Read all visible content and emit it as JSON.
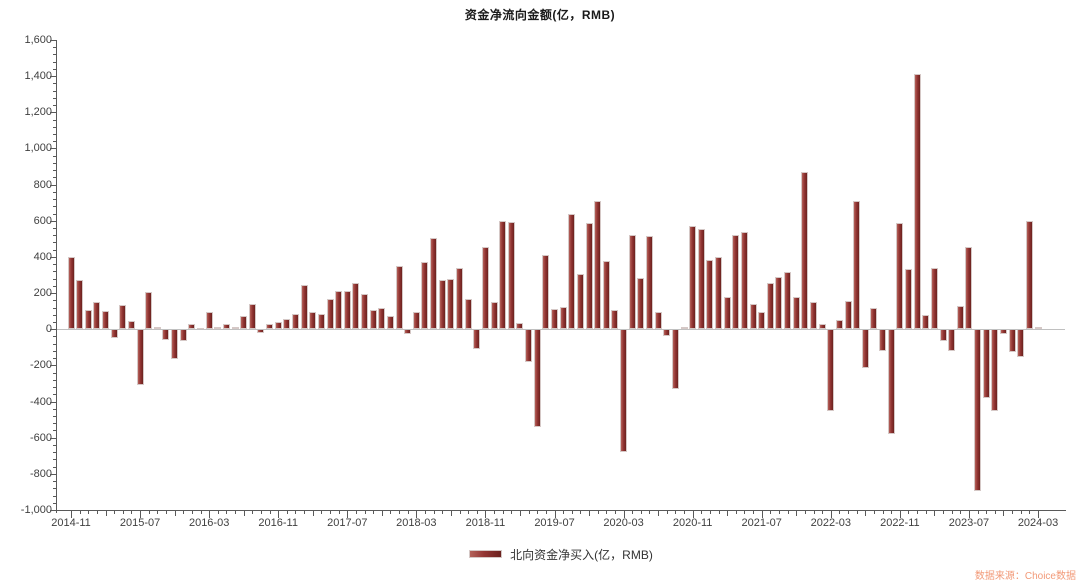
{
  "title": "资金净流向金额(亿，RMB)",
  "legend": {
    "label": "北向资金净买入(亿，RMB)"
  },
  "source_note": "数据来源：Choice数据",
  "colors": {
    "bar_main": "#943634",
    "bar_gradient_light": "#b4625a",
    "bar_gradient_dark": "#6b211e",
    "axis": "#595959",
    "zero_line": "#c0c0c0",
    "label_text": "#404040",
    "title_text": "#1a1a1a",
    "source_text": "#f29a78",
    "background": "#ffffff"
  },
  "chart_data": {
    "type": "bar",
    "title": "资金净流向金额(亿，RMB)",
    "xlabel": "",
    "ylabel": "",
    "ylim": [
      -1000,
      1600
    ],
    "y_tick_labels": [
      "1,600",
      "1,400",
      "1,200",
      "1,000",
      "800",
      "600",
      "400",
      "200",
      "0",
      "-200",
      "-400",
      "-600",
      "-800",
      "-1,000"
    ],
    "y_tick_values": [
      1600,
      1400,
      1200,
      1000,
      800,
      600,
      400,
      200,
      0,
      -200,
      -400,
      -600,
      -800,
      -1000
    ],
    "x_tick_labels": [
      "2014-11",
      "2015-07",
      "2016-03",
      "2016-11",
      "2017-07",
      "2018-03",
      "2018-11",
      "2019-07",
      "2020-03",
      "2020-11",
      "2021-07",
      "2022-03",
      "2022-11",
      "2023-07",
      "2024-03"
    ],
    "x_tick_every_months": 8,
    "grid": "none, zero baseline only",
    "legend_position": "bottom-center",
    "x": [
      "2014-11",
      "2014-12",
      "2015-01",
      "2015-02",
      "2015-03",
      "2015-04",
      "2015-05",
      "2015-06",
      "2015-07",
      "2015-08",
      "2015-09",
      "2015-10",
      "2015-11",
      "2015-12",
      "2016-01",
      "2016-02",
      "2016-03",
      "2016-04",
      "2016-05",
      "2016-06",
      "2016-07",
      "2016-08",
      "2016-09",
      "2016-10",
      "2016-11",
      "2016-12",
      "2017-01",
      "2017-02",
      "2017-03",
      "2017-04",
      "2017-05",
      "2017-06",
      "2017-07",
      "2017-08",
      "2017-09",
      "2017-10",
      "2017-11",
      "2017-12",
      "2018-01",
      "2018-02",
      "2018-03",
      "2018-04",
      "2018-05",
      "2018-06",
      "2018-07",
      "2018-08",
      "2018-09",
      "2018-10",
      "2018-11",
      "2018-12",
      "2019-01",
      "2019-02",
      "2019-03",
      "2019-04",
      "2019-05",
      "2019-06",
      "2019-07",
      "2019-08",
      "2019-09",
      "2019-10",
      "2019-11",
      "2019-12",
      "2020-01",
      "2020-02",
      "2020-03",
      "2020-04",
      "2020-05",
      "2020-06",
      "2020-07",
      "2020-08",
      "2020-09",
      "2020-10",
      "2020-11",
      "2020-12",
      "2021-01",
      "2021-02",
      "2021-03",
      "2021-04",
      "2021-05",
      "2021-06",
      "2021-07",
      "2021-08",
      "2021-09",
      "2021-10",
      "2021-11",
      "2021-12",
      "2022-01",
      "2022-02",
      "2022-03",
      "2022-04",
      "2022-05",
      "2022-06",
      "2022-07",
      "2022-08",
      "2022-09",
      "2022-10",
      "2022-11",
      "2022-12",
      "2023-01",
      "2023-02",
      "2023-03",
      "2023-04",
      "2023-05",
      "2023-06",
      "2023-07",
      "2023-08",
      "2023-09",
      "2023-10",
      "2023-11",
      "2023-12",
      "2024-01",
      "2024-02",
      "2024-03"
    ],
    "series": [
      {
        "name": "北向资金净买入(亿，RMB)",
        "values": [
          400,
          270,
          105,
          150,
          100,
          -48,
          135,
          48,
          -311,
          205,
          15,
          -57,
          -167,
          -63,
          29,
          7,
          98,
          15,
          29,
          15,
          75,
          140,
          -20,
          29,
          42,
          57,
          85,
          245,
          98,
          85,
          167,
          210,
          213,
          256,
          195,
          107,
          116,
          75,
          350,
          -26,
          97,
          370,
          505,
          275,
          280,
          340,
          165,
          -109,
          456,
          150,
          600,
          595,
          35,
          -180,
          -540,
          410,
          110,
          125,
          635,
          305,
          590,
          710,
          375,
          105,
          -680,
          520,
          285,
          515,
          95,
          -35,
          -330,
          12,
          570,
          555,
          385,
          400,
          180,
          520,
          540,
          140,
          95,
          255,
          290,
          315,
          178,
          870,
          150,
          30,
          -450,
          52,
          155,
          710,
          -213,
          118,
          -118,
          -578,
          585,
          335,
          1410,
          79,
          340,
          -63,
          -123,
          131,
          455,
          -897,
          -380,
          -454,
          -26,
          -127,
          -155,
          600,
          15
        ]
      }
    ]
  }
}
